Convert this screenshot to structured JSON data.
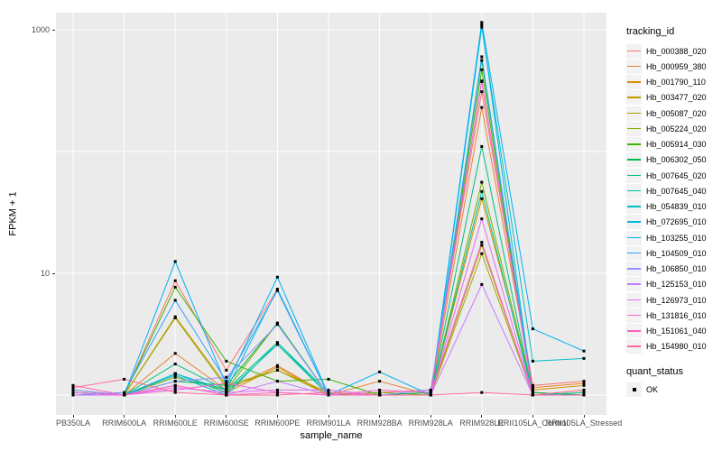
{
  "figure": {
    "x_axis_title": "sample_name",
    "y_axis_title": "FPKM + 1",
    "legend_title": "tracking_id",
    "legend2_title": "quant_status",
    "legend2_items": [
      {
        "label": "OK",
        "marker": "black-square"
      }
    ],
    "panel_bg": "#EBEBEB",
    "grid_color": "#FFFFFF",
    "tick_color": "#333333",
    "tick_label_color": "#4D4D4D",
    "point_color": "#000000"
  },
  "chart_data": {
    "type": "line",
    "title": "",
    "xlabel": "sample_name",
    "ylabel": "FPKM + 1",
    "y_scale": "log10",
    "ylim_log10": [
      -0.16,
      3.15
    ],
    "grid": true,
    "legend_position": "right",
    "y_ticks": [
      {
        "value": 1000,
        "label": "1000"
      },
      {
        "value": 10,
        "label": "10"
      }
    ],
    "y_minor_gridlines": [
      1,
      100
    ],
    "categories": [
      "PB350LA",
      "RRIM600LA",
      "RRIM600LE",
      "RRIM600SE",
      "RRIM600PE",
      "RRIM901LA",
      "RRIM928BA",
      "RRIM928LA",
      "RRIM928LE",
      "RRII105LA_Control",
      "RRII105LA_Stressed"
    ],
    "series": [
      {
        "name": "Hb_000388_020",
        "color": "#F8766D",
        "values": [
          1.1,
          1.0,
          8.7,
          1.6,
          7.4,
          1.0,
          1.05,
          1.1,
          310,
          1.2,
          1.3
        ]
      },
      {
        "name": "Hb_000959_380",
        "color": "#EA8331",
        "values": [
          1.05,
          1.0,
          2.2,
          1.1,
          1.75,
          1.0,
          1.3,
          1.0,
          230,
          1.15,
          1.25
        ]
      },
      {
        "name": "Hb_001790_110",
        "color": "#D89000",
        "values": [
          1.0,
          1.0,
          1.5,
          1.05,
          1.7,
          1.0,
          1.0,
          1.0,
          41,
          1.1,
          1.2
        ]
      },
      {
        "name": "Hb_003477_020",
        "color": "#C09B00",
        "values": [
          1.05,
          1.0,
          4.4,
          1.2,
          1.6,
          1.05,
          1.0,
          1.0,
          17,
          1.0,
          1.1
        ]
      },
      {
        "name": "Hb_005087_020",
        "color": "#A3A500",
        "values": [
          1.0,
          1.0,
          4.3,
          1.15,
          1.6,
          1.0,
          1.0,
          1.0,
          14.5,
          1.0,
          1.05
        ]
      },
      {
        "name": "Hb_005224_020",
        "color": "#7CAE00",
        "values": [
          1.0,
          1.0,
          1.4,
          1.1,
          3.9,
          1.0,
          1.05,
          1.0,
          56,
          1.05,
          1.0
        ]
      },
      {
        "name": "Hb_005914_030",
        "color": "#39B600",
        "values": [
          1.1,
          1.0,
          7.7,
          1.9,
          1.3,
          1.35,
          1.0,
          1.0,
          470,
          1.0,
          1.0
        ]
      },
      {
        "name": "Hb_006302_050",
        "color": "#00BB4E",
        "values": [
          1.0,
          1.0,
          1.3,
          1.2,
          3.9,
          1.0,
          1.0,
          1.05,
          560,
          1.05,
          1.0
        ]
      },
      {
        "name": "Hb_007645_020",
        "color": "#00BF7D",
        "values": [
          1.05,
          1.0,
          1.8,
          1.1,
          2.7,
          1.0,
          1.0,
          1.0,
          110,
          1.0,
          1.0
        ]
      },
      {
        "name": "Hb_007645_040",
        "color": "#00C1A3",
        "values": [
          1.0,
          1.0,
          1.5,
          1.05,
          2.6,
          1.0,
          1.0,
          1.0,
          47,
          1.0,
          1.05
        ]
      },
      {
        "name": "Hb_054839_010",
        "color": "#00BFC4",
        "values": [
          1.0,
          1.0,
          1.45,
          1.0,
          2.7,
          1.05,
          1.0,
          1.0,
          1050,
          1.9,
          2.0
        ]
      },
      {
        "name": "Hb_072695_010",
        "color": "#00BAE0",
        "values": [
          1.05,
          1.0,
          1.5,
          1.1,
          7.4,
          1.0,
          1.0,
          1.0,
          1100,
          1.0,
          1.0
        ]
      },
      {
        "name": "Hb_103255_010",
        "color": "#00B0F6",
        "values": [
          1.0,
          1.0,
          12.5,
          1.2,
          9.3,
          1.0,
          1.55,
          1.0,
          1150,
          3.5,
          2.3
        ]
      },
      {
        "name": "Hb_104509_010",
        "color": "#35A2FF",
        "values": [
          1.0,
          1.05,
          6.0,
          1.3,
          7.2,
          1.0,
          1.0,
          1.0,
          600,
          1.0,
          1.0
        ]
      },
      {
        "name": "Hb_106850_010",
        "color": "#9590FF",
        "values": [
          1.1,
          1.0,
          1.3,
          1.4,
          3.8,
          1.0,
          1.0,
          1.1,
          375,
          1.0,
          1.0
        ]
      },
      {
        "name": "Hb_125153_010",
        "color": "#C77CFF",
        "values": [
          1.0,
          1.0,
          1.2,
          1.0,
          1.3,
          1.0,
          1.0,
          1.0,
          8.1,
          1.0,
          1.0
        ]
      },
      {
        "name": "Hb_126973_010",
        "color": "#E76BF3",
        "values": [
          1.0,
          1.0,
          1.15,
          1.05,
          1.1,
          1.1,
          1.0,
          1.0,
          28,
          1.0,
          1.0
        ]
      },
      {
        "name": "Hb_131816_010",
        "color": "#FA62DB",
        "values": [
          1.05,
          1.0,
          1.1,
          1.25,
          1.05,
          1.0,
          1.1,
          1.05,
          18,
          1.0,
          1.0
        ]
      },
      {
        "name": "Hb_151061_040",
        "color": "#FF62BC",
        "values": [
          1.2,
          1.0,
          1.2,
          1.0,
          1.05,
          1.0,
          1.0,
          1.0,
          380,
          1.0,
          1.0
        ]
      },
      {
        "name": "Hb_154980_010",
        "color": "#FF6A98",
        "values": [
          1.15,
          1.35,
          1.05,
          1.0,
          1.0,
          1.05,
          1.0,
          1.0,
          1.05,
          1.0,
          1.1
        ]
      }
    ]
  }
}
